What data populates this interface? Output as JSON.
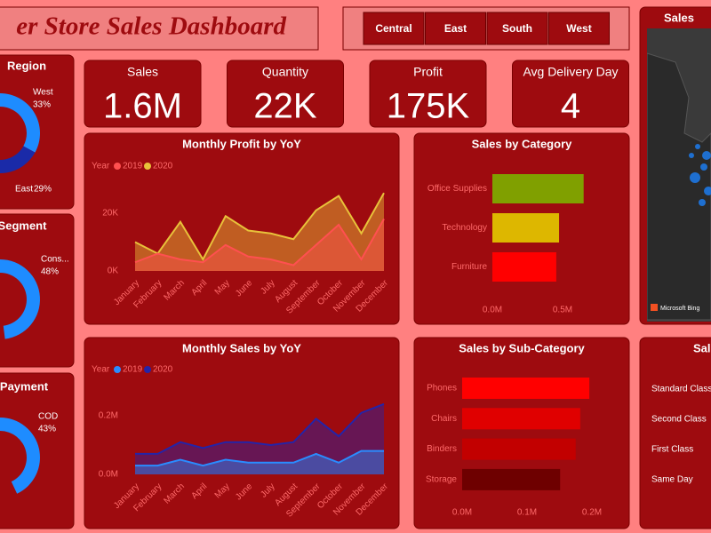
{
  "header": {
    "title": "er Store Sales Dashboard"
  },
  "slicer": {
    "options": [
      "Central",
      "East",
      "South",
      "West"
    ]
  },
  "kpis": [
    {
      "label": "Sales",
      "value": "1.6M"
    },
    {
      "label": "Quantity",
      "value": "22K"
    },
    {
      "label": "Profit",
      "value": "175K"
    },
    {
      "label": "Avg Delivery Day",
      "value": "4"
    }
  ],
  "chart_data": [
    {
      "type": "pie",
      "title": "Region",
      "categories": [
        "West",
        "East"
      ],
      "values": [
        33,
        29
      ],
      "value_labels": [
        "33%",
        "29%"
      ],
      "colors": [
        "#1e8cff",
        "#1a2aa8"
      ]
    },
    {
      "type": "pie",
      "title": "Segment",
      "categories": [
        "Cons..."
      ],
      "values": [
        48
      ],
      "value_labels": [
        "48%"
      ],
      "colors": [
        "#1e8cff"
      ]
    },
    {
      "type": "pie",
      "title": "Payment",
      "categories": [
        "COD"
      ],
      "values": [
        43
      ],
      "value_labels": [
        "43%"
      ],
      "colors": [
        "#1e8cff"
      ]
    },
    {
      "type": "area",
      "title": "Monthly Profit by YoY",
      "legend_title": "Year",
      "categories": [
        "January",
        "February",
        "March",
        "April",
        "May",
        "June",
        "July",
        "August",
        "September",
        "October",
        "November",
        "December"
      ],
      "series": [
        {
          "name": "2019",
          "color": "#ff5050",
          "values": [
            3000,
            6000,
            4000,
            3000,
            9000,
            5000,
            4000,
            2000,
            9000,
            16000,
            4000,
            18000
          ]
        },
        {
          "name": "2020",
          "color": "#e8c23a",
          "values": [
            10000,
            6000,
            17000,
            4000,
            19000,
            14000,
            13000,
            11000,
            21000,
            26000,
            13000,
            27000
          ]
        }
      ],
      "ylim": [
        0,
        30000
      ],
      "yticks": [
        {
          "value": 0,
          "label": "0K"
        },
        {
          "value": 20000,
          "label": "20K"
        }
      ]
    },
    {
      "type": "area",
      "title": "Monthly Sales by YoY",
      "legend_title": "Year",
      "categories": [
        "January",
        "February",
        "March",
        "April",
        "May",
        "June",
        "July",
        "August",
        "September",
        "October",
        "November",
        "December"
      ],
      "series": [
        {
          "name": "2019",
          "color": "#2a8cff",
          "values": [
            30000,
            30000,
            50000,
            30000,
            50000,
            40000,
            40000,
            40000,
            70000,
            40000,
            80000,
            80000
          ]
        },
        {
          "name": "2020",
          "color": "#2424a8",
          "values": [
            70000,
            70000,
            110000,
            90000,
            110000,
            110000,
            100000,
            110000,
            190000,
            130000,
            210000,
            240000
          ]
        }
      ],
      "ylim": [
        0,
        300000
      ],
      "yticks": [
        {
          "value": 0,
          "label": "0.0M"
        },
        {
          "value": 200000,
          "label": "0.2M"
        }
      ]
    },
    {
      "type": "bar",
      "orientation": "horizontal",
      "title": "Sales by Category",
      "categories": [
        "Office Supplies",
        "Technology",
        "Furniture"
      ],
      "values": [
        650000,
        475000,
        455000
      ],
      "colors": [
        "#80a000",
        "#ddb700",
        "#ff0000"
      ],
      "xlim": [
        0,
        700000
      ],
      "xticks": [
        {
          "value": 0,
          "label": "0.0M"
        },
        {
          "value": 500000,
          "label": "0.5M"
        }
      ]
    },
    {
      "type": "bar",
      "orientation": "horizontal",
      "title": "Sales by Sub-Category",
      "categories": [
        "Phones",
        "Chairs",
        "Binders",
        "Storage"
      ],
      "values": [
        196000,
        182000,
        175000,
        151000
      ],
      "colors": [
        "#ff0000",
        "#e00000",
        "#c20000",
        "#6e0000"
      ],
      "xlim": [
        0,
        200000
      ],
      "xticks": [
        {
          "value": 0,
          "label": "0.0M"
        },
        {
          "value": 100000,
          "label": "0.1M"
        },
        {
          "value": 200000,
          "label": "0.2M"
        }
      ]
    }
  ],
  "map": {
    "title": "Sales",
    "credit": "Microsoft Bing"
  },
  "ship_mode": {
    "title": "Sal",
    "categories": [
      "Standard Class",
      "Second Class",
      "First Class",
      "Same Day"
    ]
  }
}
